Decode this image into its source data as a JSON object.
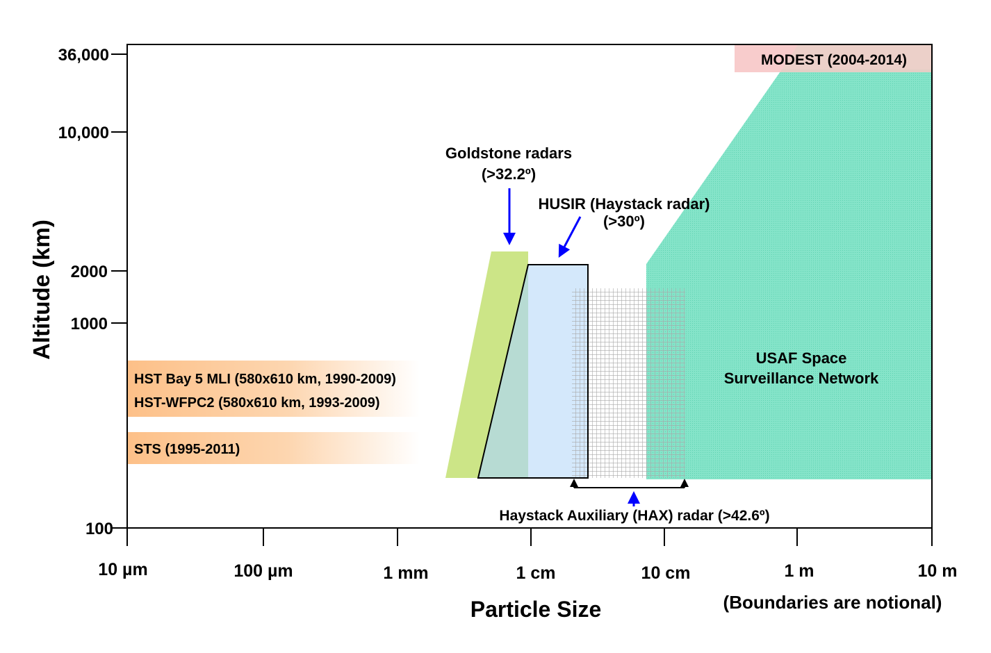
{
  "axes": {
    "y_title": "Altitude (km)",
    "x_title": "Particle Size",
    "y_ticks": [
      "36,000",
      "10,000",
      "2000",
      "1000",
      "100"
    ],
    "x_ticks": [
      "10 µm",
      "100 µm",
      "1 mm",
      "1 cm",
      "10 cm",
      "1 m",
      "10 m"
    ],
    "y_scale": "log",
    "x_scale": "log",
    "note": "(Boundaries are notional)"
  },
  "regions": {
    "modest": {
      "label": "MODEST (2004-2014)",
      "color": "#f7c6c6"
    },
    "ssn": {
      "label_line1": "USAF Space",
      "label_line2": "Surveillance Network",
      "color": "#7fe0c4"
    },
    "goldstone": {
      "label_line1": "Goldstone radars",
      "label_line2": "(>32.2º)",
      "color": "#c6e27a"
    },
    "husir": {
      "label_line1": "HUSIR (Haystack radar)",
      "label_line2": "(>30º)",
      "color": "#cce4fa"
    },
    "hax": {
      "label": "Haystack Auxiliary (HAX) radar (>42.6º)"
    },
    "hst_bay5": {
      "label": "HST Bay 5 MLI (580x610 km, 1990-2009)"
    },
    "hst_wfpc2": {
      "label": "HST-WFPC2 (580x610 km, 1993-2009)"
    },
    "sts": {
      "label": "STS (1995-2011)"
    },
    "returned_color": "#fdc088",
    "arrow_color": "#0000ff"
  }
}
